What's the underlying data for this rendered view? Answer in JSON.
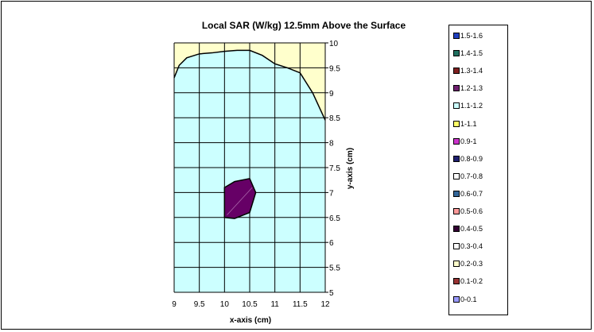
{
  "chart_data": {
    "type": "contour",
    "title": "Local SAR (W/kg) 12.5mm Above the Surface",
    "xlabel": "x-axis (cm)",
    "ylabel": "y-axis (cm)",
    "xlim": [
      9,
      12
    ],
    "ylim": [
      5,
      10
    ],
    "x_ticks": [
      "9",
      "9.5",
      "10",
      "10.5",
      "11",
      "11.5",
      "12"
    ],
    "y_ticks": [
      "5",
      "5.5",
      "6",
      "6.5",
      "7",
      "7.5",
      "8",
      "8.5",
      "9",
      "9.5",
      "10"
    ],
    "grid": true,
    "legend_position": "right",
    "legend": [
      {
        "label": "1.5-1.6",
        "color": "#1f3fbf"
      },
      {
        "label": "1.4-1.5",
        "color": "#1f6f5f"
      },
      {
        "label": "1.3-1.4",
        "color": "#7f1f1f"
      },
      {
        "label": "1.2-1.3",
        "color": "#6f1f6f"
      },
      {
        "label": "1.1-1.2",
        "color": "#ccffff"
      },
      {
        "label": "1-1.1",
        "color": "#ffff66"
      },
      {
        "label": "0.9-1",
        "color": "#cc33cc"
      },
      {
        "label": "0.8-0.9",
        "color": "#1f1f6f"
      },
      {
        "label": "0.7-0.8",
        "color": "#ffffff"
      },
      {
        "label": "0.6-0.7",
        "color": "#336699"
      },
      {
        "label": "0.5-0.6",
        "color": "#ff9999"
      },
      {
        "label": "0.4-0.5",
        "color": "#330033"
      },
      {
        "label": "0.3-0.4",
        "color": "#ffffff"
      },
      {
        "label": "0.2-0.3",
        "color": "#ffffcc"
      },
      {
        "label": "0.1-0.2",
        "color": "#993333"
      },
      {
        "label": "0-0.1",
        "color": "#9999ff"
      }
    ],
    "regions": [
      {
        "range": "1-1.1",
        "color": "#ffffcc",
        "outline": "full plot area"
      },
      {
        "range": "1.1-1.2",
        "color": "#ccffff",
        "boundary": [
          [
            9,
            9.3
          ],
          [
            9.1,
            9.55
          ],
          [
            9.25,
            9.7
          ],
          [
            9.5,
            9.78
          ],
          [
            9.75,
            9.8
          ],
          [
            10,
            9.83
          ],
          [
            10.25,
            9.85
          ],
          [
            10.5,
            9.85
          ],
          [
            10.75,
            9.75
          ],
          [
            11,
            9.58
          ],
          [
            11.25,
            9.5
          ],
          [
            11.5,
            9.4
          ],
          [
            11.75,
            9.0
          ],
          [
            12,
            8.45
          ],
          [
            12,
            5
          ],
          [
            9,
            5
          ]
        ]
      },
      {
        "range": "1.2-1.3",
        "color": "#660066",
        "boundary": [
          [
            10,
            6.5
          ],
          [
            10,
            7.1
          ],
          [
            10.2,
            7.22
          ],
          [
            10.5,
            7.28
          ],
          [
            10.62,
            7.0
          ],
          [
            10.5,
            6.6
          ],
          [
            10.2,
            6.48
          ]
        ]
      }
    ]
  }
}
